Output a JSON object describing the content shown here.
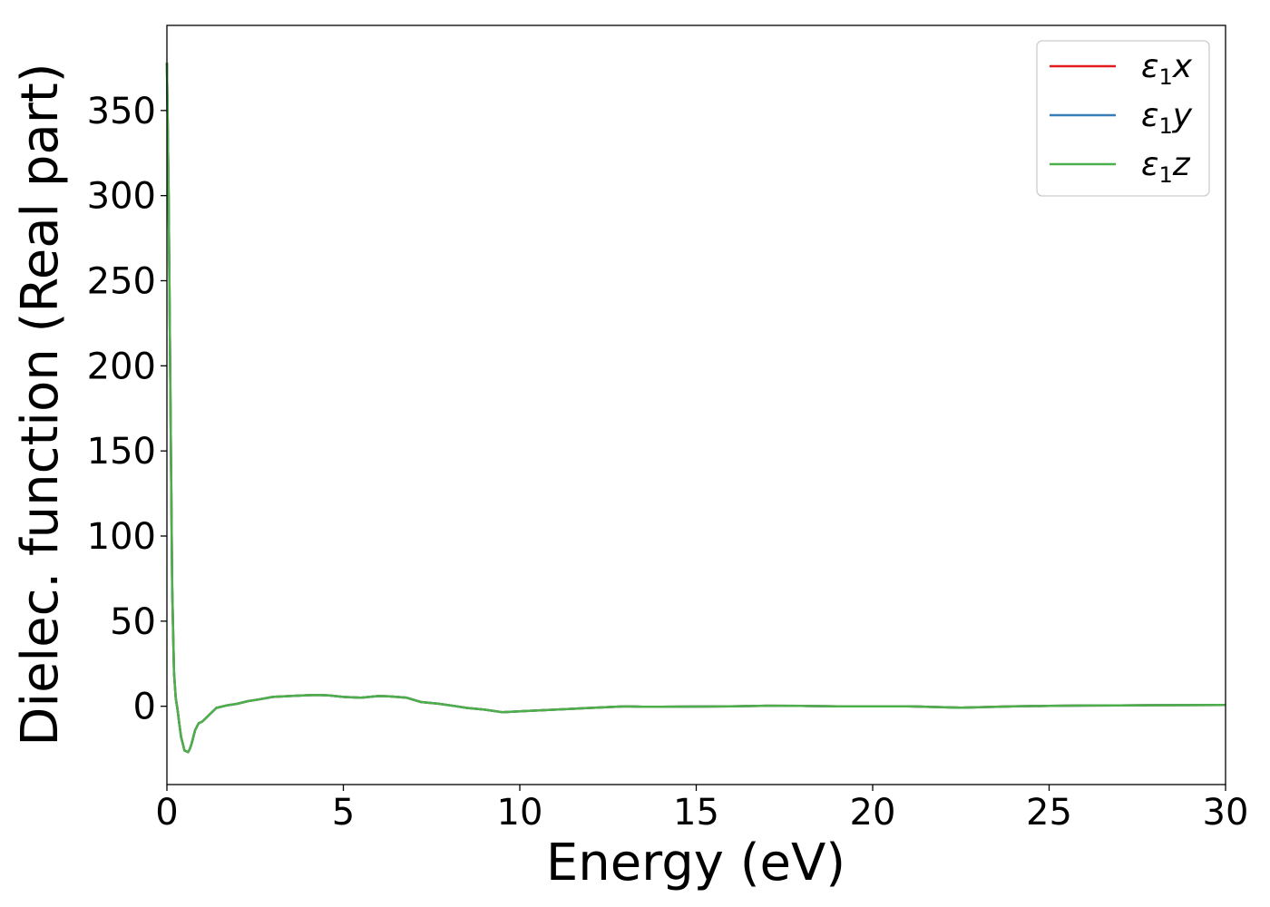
{
  "chart_data": {
    "type": "line",
    "title": "",
    "xlabel": "Energy (eV)",
    "ylabel": "Dielec. function (Real part)",
    "xlim": [
      0,
      30
    ],
    "ylim": [
      -46,
      400
    ],
    "xticks": [
      0,
      5,
      10,
      15,
      20,
      25,
      30
    ],
    "yticks": [
      0,
      50,
      100,
      150,
      200,
      250,
      300,
      350
    ],
    "grid": false,
    "legend_position": "top-right",
    "legend": [
      {
        "base": "ε",
        "sub": "1",
        "axis": "x",
        "color": "#e41a1c"
      },
      {
        "base": "ε",
        "sub": "1",
        "axis": "y",
        "color": "#377eb8"
      },
      {
        "base": "ε",
        "sub": "1",
        "axis": "z",
        "color": "#4daf4a"
      }
    ],
    "x": [
      0.0,
      0.05,
      0.1,
      0.15,
      0.2,
      0.25,
      0.3,
      0.35,
      0.4,
      0.5,
      0.6,
      0.65,
      0.7,
      0.8,
      0.9,
      1.0,
      1.2,
      1.4,
      1.7,
      2.0,
      2.3,
      2.6,
      3.0,
      3.5,
      4.0,
      4.3,
      4.6,
      5.0,
      5.5,
      6.0,
      6.3,
      6.8,
      7.2,
      7.7,
      8.2,
      8.5,
      9.0,
      9.5,
      10.0,
      11.0,
      12.0,
      13.0,
      13.5,
      14.0,
      15.0,
      16.0,
      17.0,
      18.0,
      19.0,
      20.0,
      21.0,
      22.5,
      24.0,
      25.0,
      26.0,
      27.0,
      28.0,
      29.0,
      30.0
    ],
    "series": [
      {
        "name": "ε1x",
        "color": "#e41a1c",
        "values": [
          378,
          300,
          180,
          70,
          20,
          5,
          -2,
          -10,
          -18,
          -26,
          -27,
          -25,
          -22,
          -14,
          -10,
          -9,
          -5,
          -1,
          0.5,
          1.5,
          3,
          4,
          5.5,
          6,
          6.5,
          6.6,
          6.3,
          5.5,
          5,
          6,
          5.8,
          5,
          2.5,
          1.5,
          0,
          -1,
          -2,
          -3.5,
          -3,
          -2,
          -1,
          0,
          -0.3,
          -0.3,
          -0.2,
          0,
          0.3,
          0.2,
          0,
          0,
          0,
          -0.8,
          0,
          0.2,
          0.4,
          0.5,
          0.6,
          0.7,
          0.8
        ]
      },
      {
        "name": "ε1y",
        "color": "#377eb8",
        "values": [
          378,
          300,
          180,
          70,
          20,
          5,
          -2,
          -10,
          -18,
          -26,
          -27,
          -25,
          -22,
          -14,
          -10,
          -9,
          -5,
          -1,
          0.5,
          1.5,
          3,
          4,
          5.5,
          6,
          6.5,
          6.6,
          6.3,
          5.5,
          5,
          6,
          5.8,
          5,
          2.5,
          1.5,
          0,
          -1,
          -2,
          -3.5,
          -3,
          -2,
          -1,
          0,
          -0.3,
          -0.3,
          -0.2,
          0,
          0.3,
          0.2,
          0,
          0,
          0,
          -0.8,
          0,
          0.2,
          0.4,
          0.5,
          0.6,
          0.7,
          0.8
        ]
      },
      {
        "name": "ε1z",
        "color": "#4daf4a",
        "values": [
          378,
          300,
          180,
          70,
          20,
          5,
          -2,
          -10,
          -18,
          -26,
          -27,
          -25,
          -22,
          -14,
          -10,
          -9,
          -5,
          -1,
          0.5,
          1.5,
          3,
          4,
          5.5,
          6,
          6.5,
          6.6,
          6.3,
          5.5,
          5,
          6,
          5.8,
          5,
          2.5,
          1.5,
          0,
          -1,
          -2,
          -3.5,
          -3,
          -2,
          -1,
          0,
          -0.3,
          -0.3,
          -0.2,
          0,
          0.3,
          0.2,
          0,
          0,
          0,
          -0.8,
          0,
          0.2,
          0.4,
          0.5,
          0.6,
          0.7,
          0.8
        ]
      }
    ]
  }
}
